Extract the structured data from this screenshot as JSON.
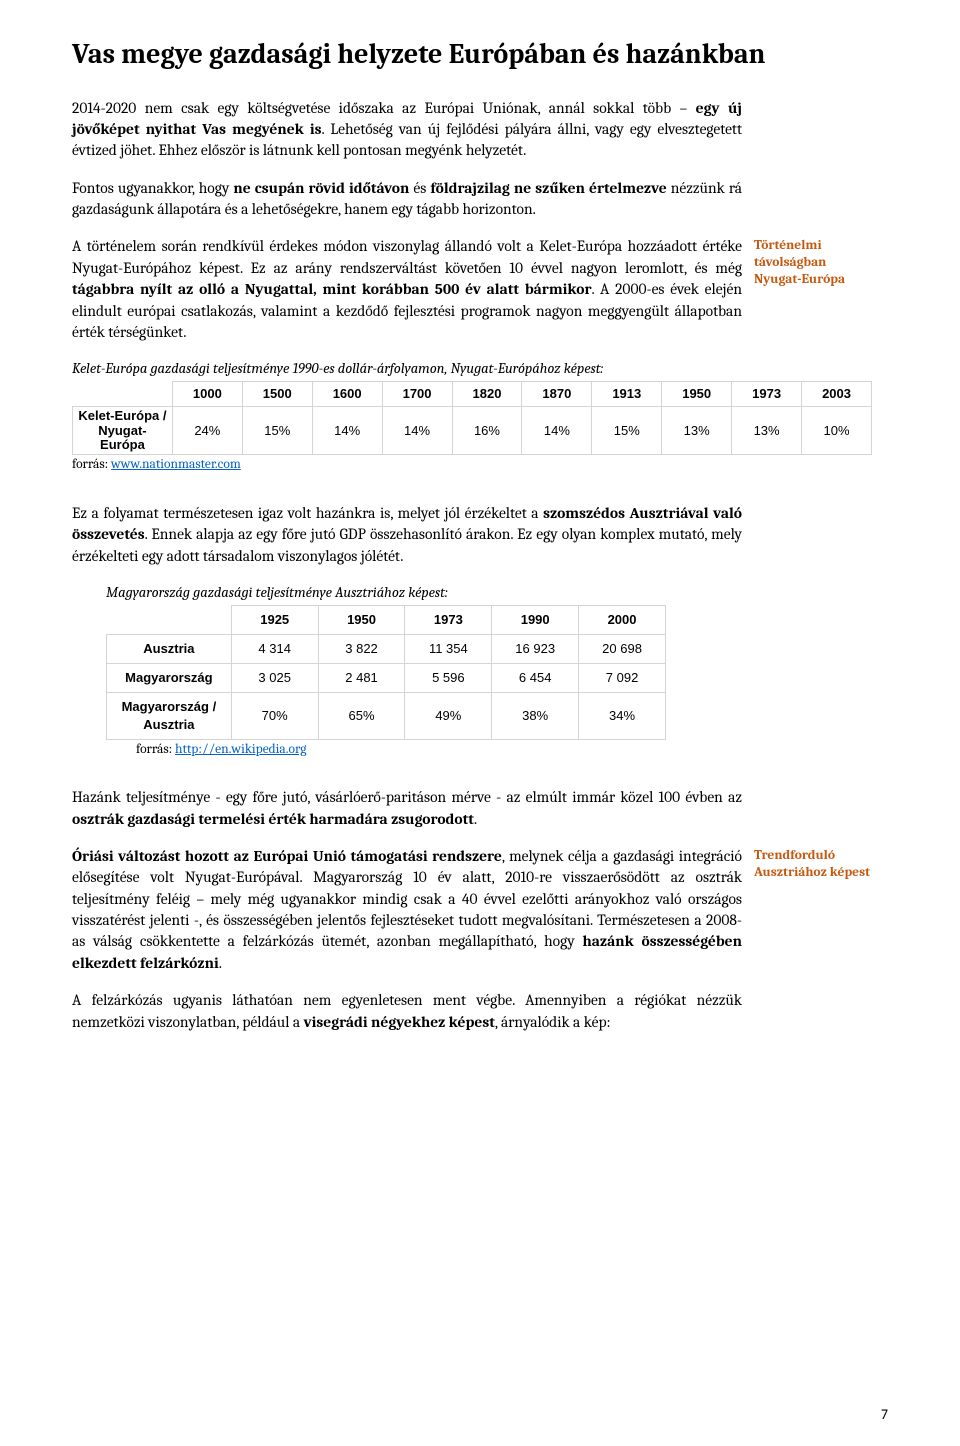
{
  "title": "Vas megye gazdasági helyzete Európában és hazánkban",
  "p1_a": "2014-2020 nem csak egy költségvetése időszaka az Európai Uniónak, annál sokkal több – ",
  "p1_b": "egy új jövőképet nyithat Vas megyének is",
  "p1_c": ". Lehetőség van új fejlődési pályára állni, vagy egy elvesztegetett évtized jöhet. Ehhez először is látnunk kell pontosan megyénk helyzetét.",
  "p2_a": "Fontos ugyanakkor, hogy ",
  "p2_b": "ne csupán rövid időtávon",
  "p2_c": " és ",
  "p2_d": "földrajzilag ne szűken értelmezve",
  "p2_e": " nézzünk rá gazdaságunk állapotára és a lehetőségekre, hanem egy tágabb horizonton.",
  "p3_a": "A történelem során rendkívül érdekes módon viszonylag állandó volt a Kelet-Európa hozzáadott értéke Nyugat-Európához képest. Ez az arány rendszerváltást követően 10 évvel nagyon leromlott, és még ",
  "p3_b": "tágabbra nyílt az olló a Nyugattal, mint korábban 500 év alatt bármikor",
  "p3_c": ". A 2000-es évek elején elindult európai csatlakozás, valamint a kezdődő fejlesztési programok nagyon meggyengült állapotban érték térségünket.",
  "side1": "Történelmi távolságban Nyugat-Európa",
  "table1_caption": "Kelet-Európa gazdasági teljesítménye 1990-es dollár-árfolyamon, Nyugat-Európához képest:",
  "table1": {
    "years": [
      "1000",
      "1500",
      "1600",
      "1700",
      "1820",
      "1870",
      "1913",
      "1950",
      "1973",
      "2003"
    ],
    "rowlabel": "Kelet-Európa / Nyugat-Európa",
    "values": [
      "24%",
      "15%",
      "14%",
      "14%",
      "16%",
      "14%",
      "15%",
      "13%",
      "13%",
      "10%"
    ]
  },
  "source1_prefix": "forrás: ",
  "source1_link": "www.nationmaster.com",
  "p4_a": "Ez a folyamat természetesen igaz volt hazánkra is, melyet jól érzékeltet a ",
  "p4_b": "szomszédos Ausztriával való összevetés",
  "p4_c": ". Ennek alapja az egy főre jutó GDP összehasonlító árakon. Ez egy olyan komplex mutató, mely érzékelteti egy adott társadalom viszonylagos jólétét.",
  "table2_caption": "Magyarország gazdasági teljesítménye Ausztriához képest:",
  "table2": {
    "years": [
      "1925",
      "1950",
      "1973",
      "1990",
      "2000"
    ],
    "rows": [
      {
        "label": "Ausztria",
        "vals": [
          "4 314",
          "3 822",
          "11 354",
          "16 923",
          "20 698"
        ]
      },
      {
        "label": "Magyarország",
        "vals": [
          "3 025",
          "2 481",
          "5 596",
          "6 454",
          "7 092"
        ]
      },
      {
        "label": "Magyarország / Ausztria",
        "vals": [
          "70%",
          "65%",
          "49%",
          "38%",
          "34%"
        ]
      }
    ]
  },
  "source2_prefix": "forrás: ",
  "source2_link": "http://en.wikipedia.org",
  "p5_a": "Hazánk teljesítménye - egy főre jutó, vásárlóerő-paritáson mérve - az elmúlt immár közel 100 évben az ",
  "p5_b": "osztrák gazdasági termelési érték harmadára zsugorodott",
  "p5_c": ".",
  "p6_a": "Óriási változást hozott az Európai Unió támogatási rendszere",
  "p6_b": ", melynek célja a gazdasági integráció elősegítése volt Nyugat-Európával. Magyarország 10 év alatt, 2010-re visszaerősödött az osztrák teljesítmény feléig – mely még ugyanakkor mindig csak a 40 évvel ezelőtti arányokhoz való országos visszatérést jelenti -, és összességében jelentős fejlesztéseket tudott megvalósítani. Természetesen a 2008-as válság csökkentette a felzárkózás ütemét, azonban megállapítható, hogy ",
  "p6_c": "hazánk összességében elkezdett felzárkózni",
  "p6_d": ".",
  "side2": "Trendforduló Ausztriához képest",
  "p7_a": "A felzárkózás ugyanis láthatóan nem egyenletesen ment végbe. Amennyiben a régiókat nézzük nemzetközi viszonylatban, például a ",
  "p7_b": "visegrádi négyekhez képest",
  "p7_c": ", árnyalódik a kép:",
  "page_number": "7"
}
